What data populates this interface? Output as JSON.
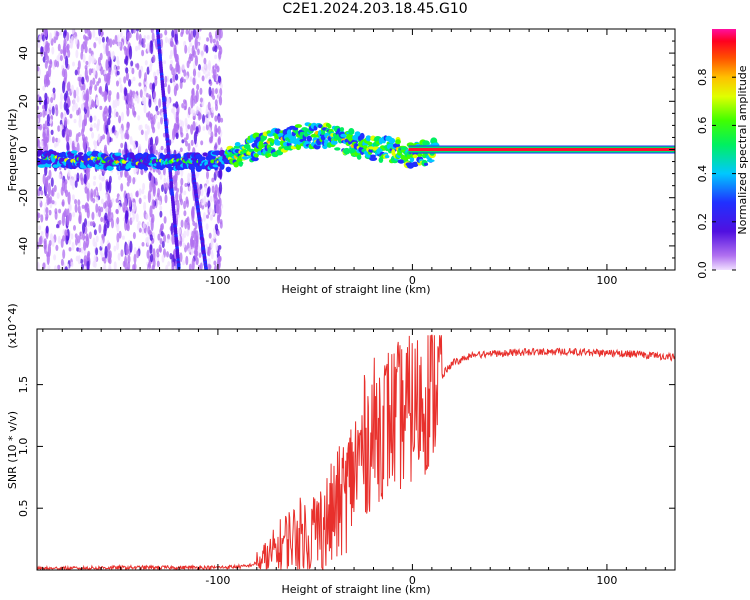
{
  "title": "C2E1.2024.203.18.45.G10",
  "chart_data": [
    {
      "type": "heatmap",
      "xlabel": "Height of straight line (km)",
      "ylabel": "Frequency (Hz)",
      "xlim": [
        -193,
        135
      ],
      "ylim": [
        -50,
        50
      ],
      "xticks": [
        -100,
        0,
        100
      ],
      "yticks": [
        -40,
        -20,
        0,
        20,
        40
      ],
      "colorbar": {
        "label": "Normalized spectral amplitude",
        "range": [
          0,
          1
        ],
        "ticks": [
          "0.0",
          "0.2",
          "0.4",
          "0.6",
          "0.8"
        ],
        "colormap": "rainbow (violet-blue-cyan-green-yellow-orange-red-magenta)"
      },
      "ridge": {
        "description": "dominant frequency vs height",
        "points": [
          [
            -193,
            -4
          ],
          [
            -170,
            -4
          ],
          [
            -150,
            -5
          ],
          [
            -130,
            -5
          ],
          [
            -110,
            -5
          ],
          [
            -95,
            -4
          ],
          [
            -85,
            0
          ],
          [
            -75,
            2
          ],
          [
            -65,
            4
          ],
          [
            -55,
            6
          ],
          [
            -45,
            6
          ],
          [
            -38,
            5
          ],
          [
            -30,
            2
          ],
          [
            -20,
            0
          ],
          [
            -10,
            0
          ],
          [
            0,
            -2
          ],
          [
            10,
            -1
          ],
          [
            20,
            0
          ],
          [
            135,
            0
          ]
        ]
      },
      "grid": false
    },
    {
      "type": "line",
      "xlabel": "Height of straight line (km)",
      "ylabel": "SNR (10 * v/v)",
      "y_multiplier": "(x10^4)",
      "xlim": [
        -193,
        135
      ],
      "ylim": [
        0,
        1.95
      ],
      "xticks": [
        -100,
        0,
        100
      ],
      "yticks": [
        0.5,
        1.0,
        1.5
      ],
      "ytick_labels": [
        "0.5",
        "1.0",
        "1.5"
      ],
      "series": [
        {
          "color": "#e8302c",
          "points": [
            [
              -193,
              0.01
            ],
            [
              -150,
              0.02
            ],
            [
              -100,
              0.02
            ],
            [
              -85,
              0.03
            ],
            [
              -75,
              0.08
            ],
            [
              -65,
              0.25
            ],
            [
              -55,
              0.3
            ],
            [
              -45,
              0.35
            ],
            [
              -35,
              0.6
            ],
            [
              -25,
              1.0
            ],
            [
              -15,
              1.2
            ],
            [
              -5,
              1.25
            ],
            [
              5,
              1.35
            ],
            [
              10,
              1.45
            ],
            [
              15,
              1.6
            ],
            [
              20,
              1.7
            ],
            [
              30,
              1.76
            ],
            [
              50,
              1.79
            ],
            [
              80,
              1.8
            ],
            [
              110,
              1.78
            ],
            [
              135,
              1.75
            ]
          ]
        }
      ],
      "grid": false
    }
  ]
}
